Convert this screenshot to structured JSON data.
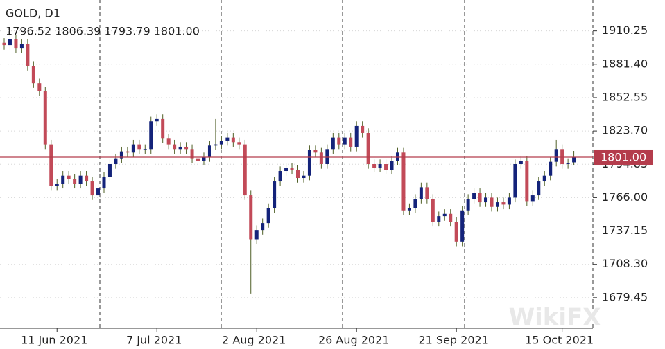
{
  "chart_data": {
    "type": "candlestick",
    "title": "GOLD, D1",
    "ohlc_label": "1796.52 1806.39 1793.79 1801.00",
    "watermark": "WikiFX",
    "categories": [
      null,
      null,
      null,
      null,
      null,
      null,
      null,
      null,
      null,
      "11 Jun 2021",
      null,
      null,
      null,
      null,
      null,
      null,
      null,
      null,
      null,
      null,
      null,
      null,
      null,
      null,
      null,
      null,
      "7 Jul 2021",
      null,
      null,
      null,
      null,
      null,
      null,
      null,
      null,
      null,
      null,
      null,
      null,
      null,
      null,
      null,
      null,
      "2 Aug 2021",
      null,
      null,
      null,
      null,
      null,
      null,
      null,
      null,
      null,
      null,
      null,
      null,
      null,
      null,
      null,
      null,
      "26 Aug 2021",
      null,
      null,
      null,
      null,
      null,
      null,
      null,
      null,
      null,
      null,
      null,
      null,
      null,
      null,
      null,
      null,
      "21 Sep 2021",
      null,
      null,
      null,
      null,
      null,
      null,
      null,
      null,
      null,
      null,
      null,
      null,
      null,
      null,
      null,
      null,
      null,
      "15 Oct 2021",
      null,
      null
    ],
    "open": [
      1900,
      1898,
      1903,
      1895,
      1899,
      1880,
      1865,
      1858,
      1812,
      1776,
      1778,
      1785,
      1782,
      1778,
      1785,
      1780,
      1768,
      1774,
      1784,
      1795,
      1800,
      1806,
      1805,
      1812,
      1808,
      1808,
      1832,
      1834,
      1817,
      1812,
      1808,
      1810,
      1808,
      1800,
      1798,
      1801,
      1811,
      1812,
      1815,
      1818,
      1814,
      1812,
      1768,
      1730,
      1738,
      1744,
      1757,
      1780,
      1789,
      1792,
      1790,
      1783,
      1785,
      1807,
      1805,
      1795,
      1808,
      1818,
      1812,
      1818,
      1810,
      1828,
      1822,
      1795,
      1792,
      1795,
      1790,
      1798,
      1805,
      1755,
      1757,
      1765,
      1775,
      1765,
      1745,
      1750,
      1752,
      1745,
      1728,
      1755,
      1765,
      1770,
      1762,
      1766,
      1758,
      1762,
      1760,
      1766,
      1795,
      1798,
      1763,
      1768,
      1780,
      1785,
      1797,
      1808,
      1795,
      1796.52
    ],
    "high": [
      1904,
      1907,
      1907,
      1903,
      1903,
      1884,
      1869,
      1862,
      1816,
      1782,
      1789,
      1789,
      1786,
      1789,
      1789,
      1784,
      1778,
      1788,
      1799,
      1804,
      1810,
      1810,
      1816,
      1816,
      1812,
      1836,
      1838,
      1838,
      1821,
      1816,
      1814,
      1814,
      1812,
      1804,
      1805,
      1815,
      1834,
      1819,
      1822,
      1822,
      1818,
      1816,
      1772,
      1742,
      1748,
      1761,
      1784,
      1793,
      1796,
      1796,
      1794,
      1789,
      1811,
      1811,
      1809,
      1812,
      1822,
      1822,
      1822,
      1822,
      1832,
      1832,
      1826,
      1799,
      1799,
      1799,
      1802,
      1809,
      1809,
      1761,
      1769,
      1779,
      1779,
      1769,
      1754,
      1756,
      1756,
      1749,
      1759,
      1769,
      1774,
      1774,
      1770,
      1770,
      1766,
      1766,
      1770,
      1799,
      1802,
      1802,
      1772,
      1784,
      1789,
      1801,
      1816,
      1812,
      1800,
      1806.39
    ],
    "low": [
      1894,
      1894,
      1891,
      1891,
      1876,
      1861,
      1854,
      1808,
      1772,
      1772,
      1774,
      1778,
      1774,
      1774,
      1776,
      1764,
      1764,
      1770,
      1780,
      1791,
      1796,
      1801,
      1801,
      1804,
      1804,
      1804,
      1828,
      1813,
      1808,
      1804,
      1804,
      1804,
      1796,
      1794,
      1794,
      1797,
      1807,
      1808,
      1811,
      1810,
      1808,
      1764,
      1683,
      1726,
      1734,
      1740,
      1753,
      1776,
      1785,
      1786,
      1779,
      1779,
      1781,
      1801,
      1791,
      1791,
      1804,
      1808,
      1808,
      1806,
      1806,
      1818,
      1791,
      1788,
      1788,
      1786,
      1786,
      1794,
      1751,
      1751,
      1753,
      1761,
      1761,
      1741,
      1741,
      1746,
      1741,
      1724,
      1724,
      1751,
      1761,
      1758,
      1758,
      1754,
      1754,
      1756,
      1756,
      1762,
      1791,
      1759,
      1759,
      1764,
      1776,
      1781,
      1793,
      1791,
      1791,
      1793.79
    ],
    "close": [
      1898,
      1903,
      1895,
      1899,
      1880,
      1865,
      1858,
      1812,
      1776,
      1778,
      1785,
      1782,
      1778,
      1785,
      1780,
      1768,
      1774,
      1784,
      1795,
      1800,
      1806,
      1805,
      1812,
      1808,
      1808,
      1832,
      1834,
      1817,
      1812,
      1808,
      1810,
      1808,
      1800,
      1798,
      1801,
      1811,
      1812,
      1815,
      1818,
      1814,
      1812,
      1768,
      1730,
      1738,
      1744,
      1757,
      1780,
      1789,
      1792,
      1790,
      1783,
      1785,
      1807,
      1805,
      1795,
      1808,
      1818,
      1812,
      1818,
      1810,
      1828,
      1822,
      1795,
      1792,
      1795,
      1790,
      1798,
      1805,
      1755,
      1757,
      1765,
      1775,
      1765,
      1745,
      1750,
      1752,
      1745,
      1728,
      1755,
      1765,
      1770,
      1762,
      1766,
      1758,
      1762,
      1760,
      1766,
      1795,
      1798,
      1763,
      1768,
      1780,
      1785,
      1797,
      1808,
      1795,
      1796,
      1801
    ],
    "up_color": "#14237a",
    "down_color": "#c24a58",
    "wick_color": "#4f5f26",
    "last_price": {
      "value": 1801,
      "label": "1801.00"
    },
    "last_price_color": "#b43c4c",
    "ylim": [
      1653,
      1937
    ],
    "yticks": [
      1910.25,
      {
        "value": 1881.4,
        "label": "1881.40"
      },
      1852.55,
      {
        "value": 1823.7,
        "label": "1823.70"
      },
      1794.85,
      {
        "value": 1766,
        "label": "1766.00"
      },
      1737.15,
      {
        "value": 1708.3,
        "label": "1708.30"
      },
      1679.45
    ],
    "grid": true
  }
}
